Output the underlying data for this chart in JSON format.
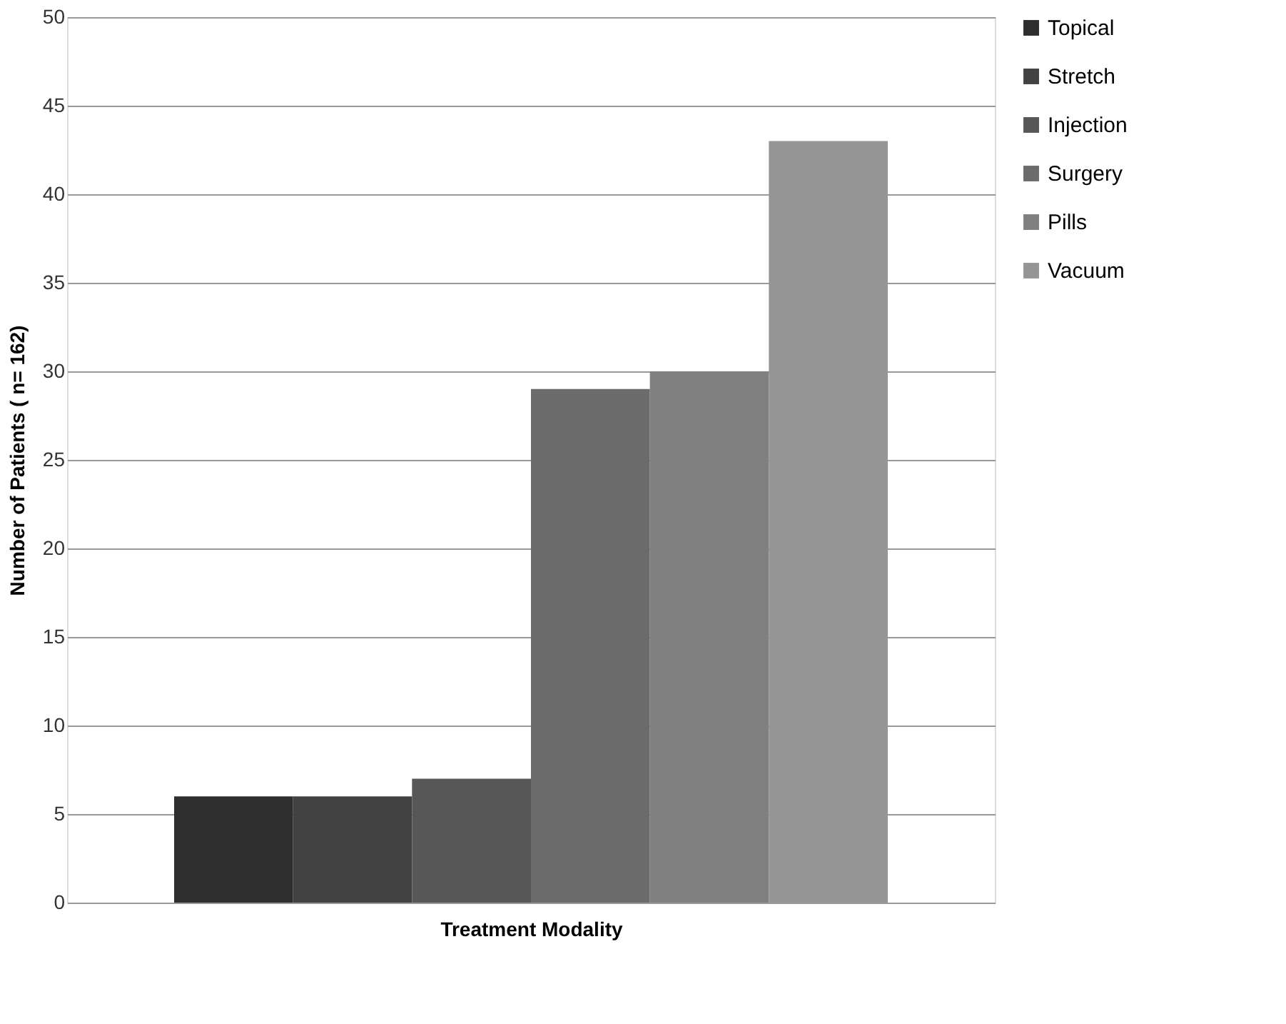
{
  "chart_data": {
    "type": "bar",
    "xlabel": "Treatment Modality",
    "ylabel": "Number of Patients ( n= 162)",
    "categories": [
      null
    ],
    "series": [
      {
        "name": "Topical",
        "color": "#2e2e2e",
        "values": [
          6
        ]
      },
      {
        "name": "Stretch",
        "color": "#424242",
        "values": [
          6
        ]
      },
      {
        "name": "Injection",
        "color": "#575757",
        "values": [
          7
        ]
      },
      {
        "name": "Surgery",
        "color": "#6b6b6b",
        "values": [
          29
        ]
      },
      {
        "name": "Pills",
        "color": "#808080",
        "values": [
          30
        ]
      },
      {
        "name": "Vacuum",
        "color": "#959595",
        "values": [
          43
        ]
      }
    ],
    "ylim": [
      0,
      50
    ],
    "yticks": [
      0,
      5,
      10,
      15,
      20,
      25,
      30,
      35,
      40,
      45,
      50
    ],
    "grid": "y",
    "legend": "right",
    "tick_labels": "y"
  }
}
